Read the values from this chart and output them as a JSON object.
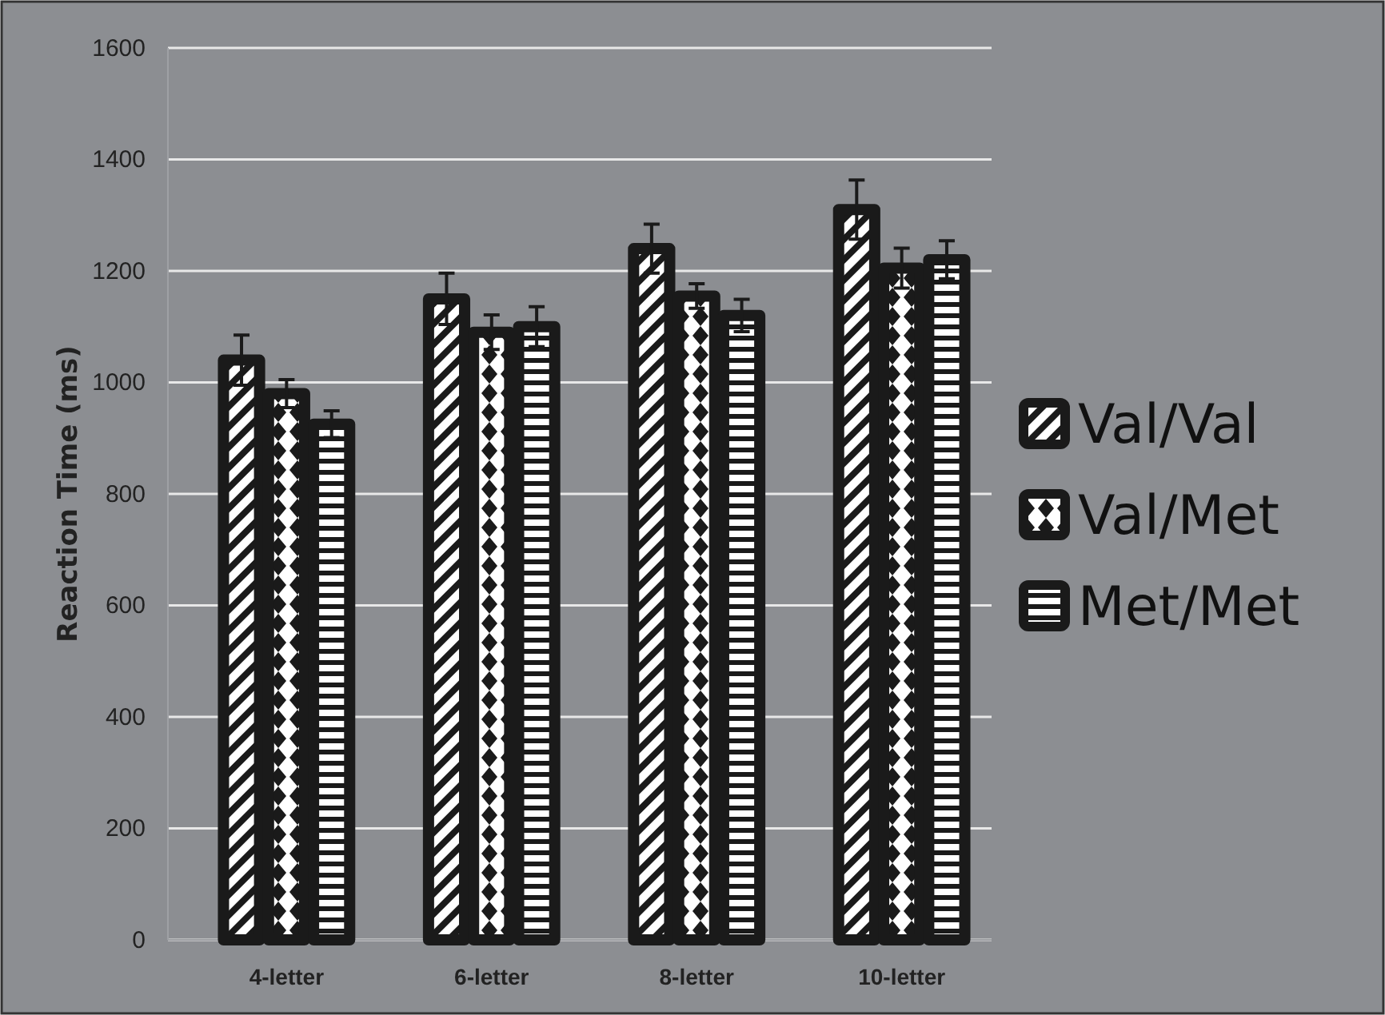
{
  "chart_data": {
    "type": "bar",
    "ylabel": "Reaction Time (ms)",
    "categories": [
      "4-letter",
      "6-letter",
      "8-letter",
      "10-letter"
    ],
    "series": [
      {
        "name": "Val/Val",
        "color": "#1a1a1a",
        "values": [
          1040,
          1150,
          1240,
          1310
        ],
        "errors": [
          45,
          46,
          44,
          53
        ]
      },
      {
        "name": "Val/Met",
        "color": "#1a1a1a",
        "values": [
          980,
          1090,
          1155,
          1205
        ],
        "errors": [
          25,
          31,
          22,
          36
        ]
      },
      {
        "name": "Met/Met",
        "color": "#1a1a1a",
        "values": [
          925,
          1100,
          1120,
          1220
        ],
        "errors": [
          24,
          36,
          29,
          34
        ]
      }
    ],
    "ylim": [
      0,
      1600
    ],
    "yticks": [
      0,
      200,
      400,
      600,
      800,
      1000,
      1200,
      1400,
      1600
    ],
    "grid": "y",
    "legend": "right"
  }
}
